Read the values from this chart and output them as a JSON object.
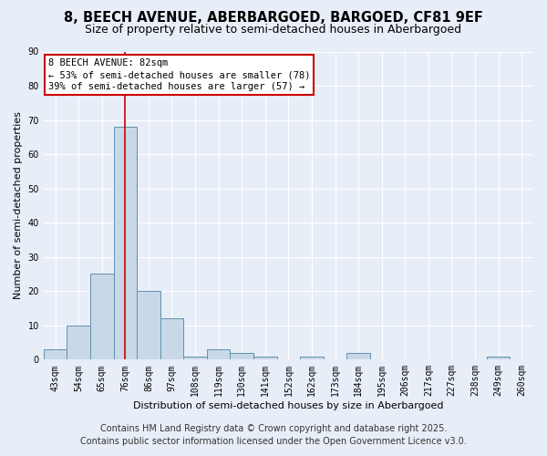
{
  "title_line1": "8, BEECH AVENUE, ABERBARGOED, BARGOED, CF81 9EF",
  "title_line2": "Size of property relative to semi-detached houses in Aberbargoed",
  "xlabel": "Distribution of semi-detached houses by size in Aberbargoed",
  "ylabel": "Number of semi-detached properties",
  "footnote_line1": "Contains HM Land Registry data © Crown copyright and database right 2025.",
  "footnote_line2": "Contains public sector information licensed under the Open Government Licence v3.0.",
  "bin_labels": [
    "43sqm",
    "54sqm",
    "65sqm",
    "76sqm",
    "86sqm",
    "97sqm",
    "108sqm",
    "119sqm",
    "130sqm",
    "141sqm",
    "152sqm",
    "162sqm",
    "173sqm",
    "184sqm",
    "195sqm",
    "206sqm",
    "217sqm",
    "227sqm",
    "238sqm",
    "249sqm",
    "260sqm"
  ],
  "bar_heights": [
    3,
    10,
    25,
    68,
    20,
    12,
    1,
    3,
    2,
    1,
    0,
    1,
    0,
    2,
    0,
    0,
    0,
    0,
    0,
    1,
    0
  ],
  "bar_color": "#c8d8e8",
  "bar_edge_color": "#6090b0",
  "property_bin_index": 3,
  "property_label": "8 BEECH AVENUE: 82sqm",
  "annotation_smaller": "← 53% of semi-detached houses are smaller (78)",
  "annotation_larger": "39% of semi-detached houses are larger (57) →",
  "annotation_box_color": "#ffffff",
  "annotation_box_edge_color": "#cc0000",
  "ref_line_color": "#cc0000",
  "ylim": [
    0,
    90
  ],
  "yticks": [
    0,
    10,
    20,
    30,
    40,
    50,
    60,
    70,
    80,
    90
  ],
  "background_color": "#e8eef8",
  "grid_color": "#ffffff",
  "title1_fontsize": 10.5,
  "title2_fontsize": 9,
  "axis_fontsize": 8,
  "tick_fontsize": 7,
  "annot_fontsize": 7.5,
  "footnote_fontsize": 7
}
